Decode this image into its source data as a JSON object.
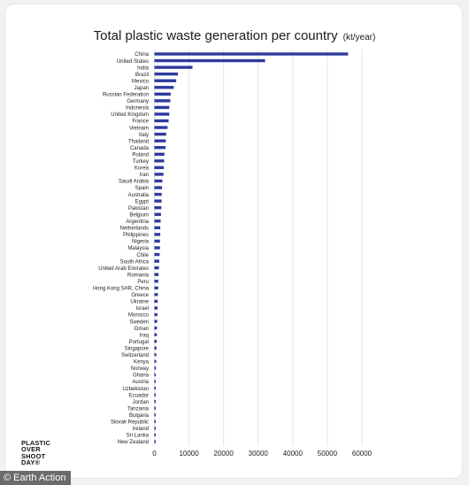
{
  "chart_data": {
    "type": "bar",
    "orientation": "horizontal",
    "title": "Total plastic waste generation per country",
    "unit": "(kt/year)",
    "xlim": [
      0,
      60000
    ],
    "xticks": [
      "0",
      "10000",
      "20000",
      "30000",
      "40000",
      "50000",
      "60000"
    ],
    "grid": "vertical",
    "bar_color": "#2e3a9e",
    "categories": [
      "China",
      "United States",
      "India",
      "Brazil",
      "Mexico",
      "Japan",
      "Russian Federation",
      "Germany",
      "Indonesia",
      "United Kingdom",
      "France",
      "Vietnam",
      "Italy",
      "Thailand",
      "Canada",
      "Poland",
      "Turkey",
      "Korea",
      "Iran",
      "Saudi Arabia",
      "Spain",
      "Australia",
      "Egypt",
      "Pakistan",
      "Belgium",
      "Argentina",
      "Netherlands",
      "Philippines",
      "Nigeria",
      "Malaysia",
      "Chile",
      "South Africa",
      "United Arab Emirates",
      "Romania",
      "Peru",
      "Hong Kong SAR, China",
      "Greece",
      "Ukraine",
      "Israel",
      "Morocco",
      "Sweden",
      "Oman",
      "Iraq",
      "Portugal",
      "Singapore",
      "Switzerland",
      "Kenya",
      "Norway",
      "Ghana",
      "Austria",
      "Uzbekistan",
      "Ecuador",
      "Jordan",
      "Tanzania",
      "Bulgaria",
      "Slovak Republic",
      "Ireland",
      "Sri Lanka",
      "New Zealand"
    ],
    "values": [
      56000,
      32000,
      11000,
      6800,
      6300,
      5600,
      4700,
      4600,
      4300,
      4300,
      4100,
      3800,
      3400,
      3300,
      3200,
      2900,
      2800,
      2700,
      2600,
      2300,
      2200,
      2100,
      2100,
      2000,
      1900,
      1800,
      1700,
      1700,
      1600,
      1600,
      1500,
      1400,
      1300,
      1200,
      1100,
      1100,
      1000,
      950,
      900,
      850,
      800,
      750,
      700,
      650,
      600,
      550,
      500,
      450,
      400,
      380,
      350,
      330,
      300,
      280,
      260,
      240,
      220,
      200,
      180
    ]
  },
  "logo": {
    "lines": [
      "PLASTIC",
      "OVER",
      "SHOOT",
      "DAY®"
    ]
  },
  "credit": "© Earth Action"
}
